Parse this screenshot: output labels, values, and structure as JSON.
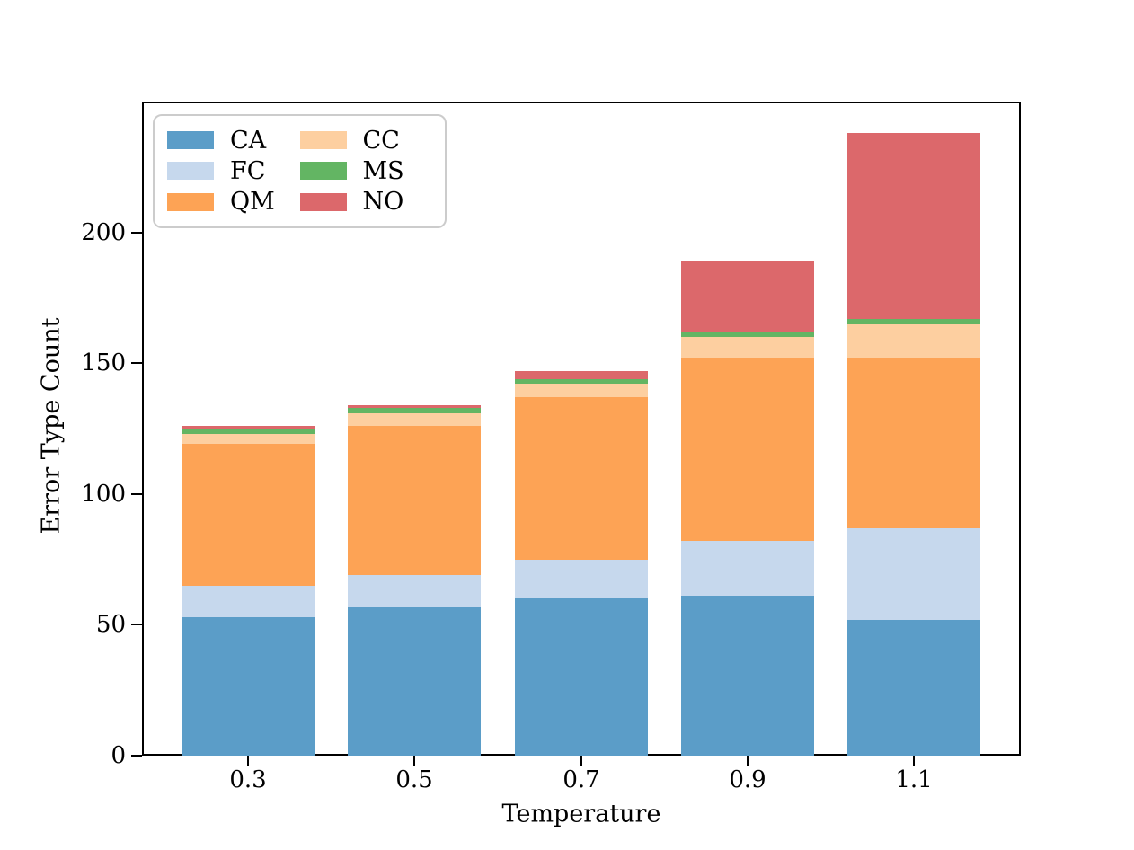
{
  "figure": {
    "background": "#ffffff",
    "text_color": "#000000"
  },
  "chart_data": {
    "type": "bar",
    "stacked": true,
    "title": "",
    "xlabel": "Temperature",
    "ylabel": "Error Type Count",
    "categories": [
      "0.3",
      "0.5",
      "0.7",
      "0.9",
      "1.1"
    ],
    "series": [
      {
        "name": "CA",
        "color": "#5b9dc8",
        "values": [
          53,
          57,
          60,
          61,
          52
        ]
      },
      {
        "name": "FC",
        "color": "#c6d8ed",
        "values": [
          12,
          12,
          15,
          21,
          35
        ]
      },
      {
        "name": "QM",
        "color": "#fda355",
        "values": [
          54,
          57,
          62,
          70,
          65
        ]
      },
      {
        "name": "CC",
        "color": "#fdcfa0",
        "values": [
          4,
          5,
          5,
          8,
          13
        ]
      },
      {
        "name": "MS",
        "color": "#63b563",
        "values": [
          2,
          2,
          2,
          2,
          2
        ]
      },
      {
        "name": "NO",
        "color": "#dc686b",
        "values": [
          1,
          1,
          3,
          27,
          71
        ]
      }
    ],
    "totals": [
      126,
      134,
      147,
      189,
      238
    ],
    "ylim": [
      0,
      250
    ],
    "ytick_values": [
      0,
      50,
      100,
      150,
      200
    ],
    "yticks": [
      "0",
      "50",
      "100",
      "150",
      "200"
    ],
    "grid": false,
    "legend": {
      "position": "upper left",
      "columns": 2,
      "order": [
        "CA",
        "FC",
        "QM",
        "CC",
        "MS",
        "NO"
      ]
    }
  }
}
